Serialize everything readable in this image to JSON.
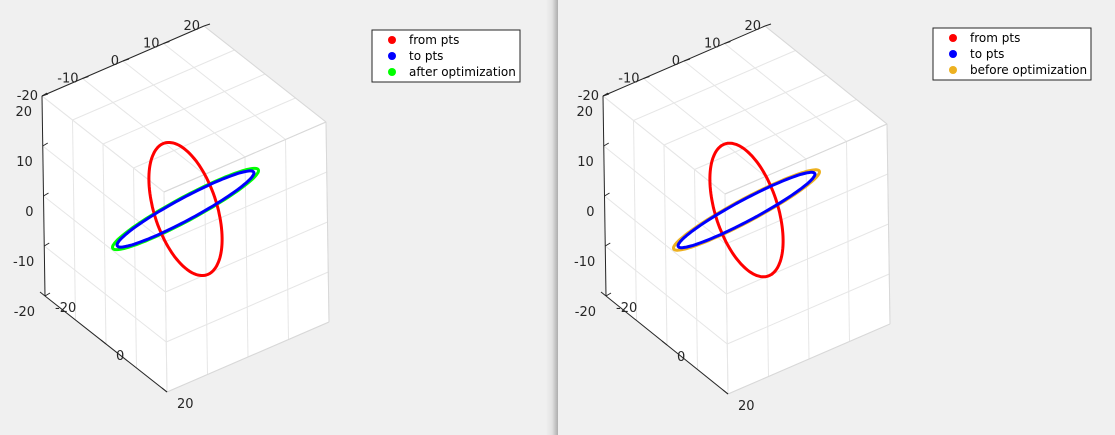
{
  "chart_data": [
    {
      "type": "line",
      "projection": "3d",
      "title": "",
      "xlabel": "",
      "ylabel": "",
      "zlabel": "",
      "xlim": [
        -20,
        20
      ],
      "ylim": [
        -20,
        20
      ],
      "zlim": [
        -20,
        20
      ],
      "xticks": [
        "-20",
        "0",
        "20"
      ],
      "yticks": [
        "20",
        "10",
        "0",
        "-10",
        "-20"
      ],
      "zticks": [
        "20",
        "10",
        "0",
        "-10",
        "-20"
      ],
      "grid": true,
      "legend_position": "top-right",
      "series": [
        {
          "name": "from pts",
          "color": "#ff0000",
          "shape": "circle",
          "center": [
            0,
            0,
            0
          ],
          "radius": 12,
          "normal": [
            0,
            0,
            1
          ]
        },
        {
          "name": "to pts",
          "color": "#0000ff",
          "shape": "circle",
          "center": [
            0,
            0,
            0
          ],
          "radius": 15,
          "normal": [
            1,
            -1,
            0
          ]
        },
        {
          "name": "after optimization",
          "color": "#00ff00",
          "shape": "circle",
          "center": [
            0,
            0,
            0
          ],
          "radius": 16,
          "normal": [
            1,
            -1,
            0
          ]
        }
      ]
    },
    {
      "type": "line",
      "projection": "3d",
      "title": "",
      "xlabel": "",
      "ylabel": "",
      "zlabel": "",
      "xlim": [
        -20,
        20
      ],
      "ylim": [
        -20,
        20
      ],
      "zlim": [
        -20,
        20
      ],
      "xticks": [
        "-20",
        "0",
        "20"
      ],
      "yticks": [
        "20",
        "10",
        "0",
        "-10",
        "-20"
      ],
      "zticks": [
        "20",
        "10",
        "0",
        "-10",
        "-20"
      ],
      "grid": true,
      "legend_position": "top-right",
      "series": [
        {
          "name": "from pts",
          "color": "#ff0000",
          "shape": "circle",
          "center": [
            0,
            0,
            0
          ],
          "radius": 12,
          "normal": [
            0,
            0,
            1
          ]
        },
        {
          "name": "to pts",
          "color": "#0000ff",
          "shape": "circle",
          "center": [
            0,
            0,
            0
          ],
          "radius": 15,
          "normal": [
            1,
            -1,
            0
          ]
        },
        {
          "name": "before optimization",
          "color": "#edb120",
          "shape": "circle",
          "center": [
            0,
            0,
            0
          ],
          "radius": 16,
          "normal": [
            1,
            -1,
            0
          ]
        }
      ]
    }
  ]
}
